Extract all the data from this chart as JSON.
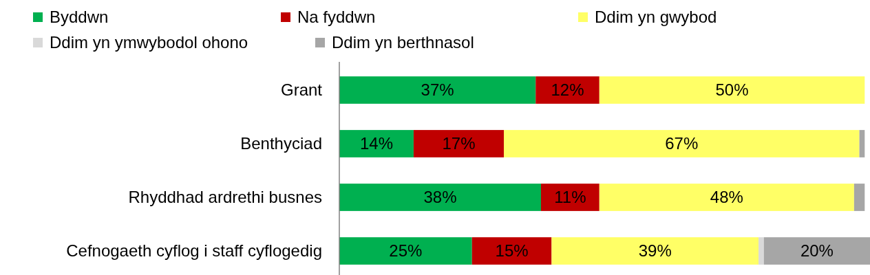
{
  "chart_data": {
    "type": "bar",
    "orientation": "horizontal",
    "stacked": true,
    "categories": [
      "Grant",
      "Benthyciad",
      "Rhyddhad ardrethi busnes",
      "Cefnogaeth cyflog i staff cyflogedig"
    ],
    "series": [
      {
        "name": "Byddwn",
        "color": "#00b050",
        "values": [
          37,
          14,
          38,
          25
        ],
        "value_labels": [
          "37%",
          "14%",
          "38%",
          "25%"
        ]
      },
      {
        "name": "Na fyddwn",
        "color": "#c00000",
        "values": [
          12,
          17,
          11,
          15
        ],
        "value_labels": [
          "12%",
          "17%",
          "11%",
          "15%"
        ]
      },
      {
        "name": "Ddim yn gwybod",
        "color": "#ffff66",
        "values": [
          50,
          67,
          48,
          39
        ],
        "value_labels": [
          "50%",
          "67%",
          "48%",
          "39%"
        ]
      },
      {
        "name": "Ddim yn ymwybodol ohono",
        "color": "#d9d9d9",
        "values": [
          0,
          0,
          0,
          1
        ],
        "value_labels": [
          null,
          null,
          null,
          null
        ]
      },
      {
        "name": "Ddim yn berthnasol",
        "color": "#a6a6a6",
        "values": [
          0,
          1,
          2,
          20
        ],
        "value_labels": [
          null,
          null,
          null,
          "20%"
        ]
      }
    ],
    "xlim": [
      0,
      100
    ],
    "tick_labels": "y",
    "legend": "top"
  }
}
